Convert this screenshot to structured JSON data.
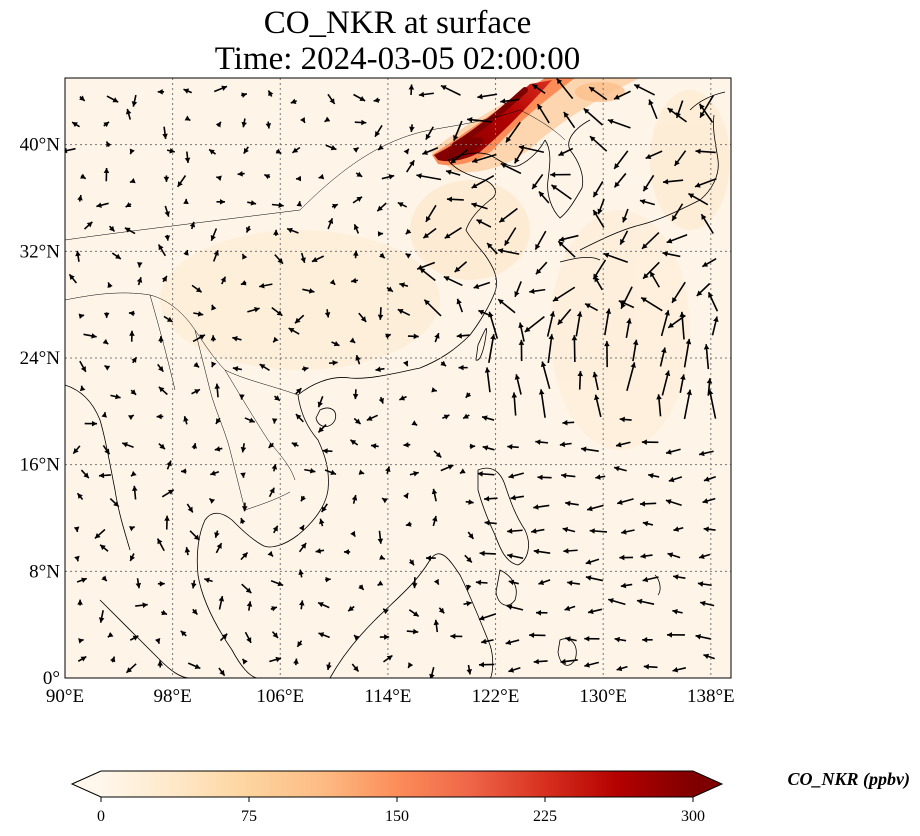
{
  "title": {
    "line1": "CO_NKR at surface",
    "line2": "Time: 2024-03-05 02:00:00"
  },
  "map": {
    "lon_range": [
      90,
      139.5
    ],
    "lat_range": [
      0,
      45
    ],
    "gridlines": "dotted",
    "coastlines": true,
    "borders": true,
    "lon_ticks": [
      {
        "value": 90,
        "label": "90°E"
      },
      {
        "value": 98,
        "label": "98°E"
      },
      {
        "value": 106,
        "label": "106°E"
      },
      {
        "value": 114,
        "label": "114°E"
      },
      {
        "value": 122,
        "label": "122°E"
      },
      {
        "value": 130,
        "label": "130°E"
      },
      {
        "value": 138,
        "label": "138°E"
      }
    ],
    "lat_ticks": [
      {
        "value": 0,
        "label": "0°"
      },
      {
        "value": 8,
        "label": "8°N"
      },
      {
        "value": 16,
        "label": "16°N"
      },
      {
        "value": 24,
        "label": "24°N"
      },
      {
        "value": 32,
        "label": "32°N"
      },
      {
        "value": 40,
        "label": "40°N"
      }
    ],
    "high_concentration_band": "Northeast China / Bohai region, up to >300 ppbv",
    "wind_vectors": "black quiver arrows"
  },
  "colorbar": {
    "label": "CO_NKR (ppbv)",
    "min": 0,
    "max": 300,
    "ticks": [
      "0",
      "75",
      "150",
      "225",
      "300"
    ],
    "colormap": "OrRd",
    "colors": [
      "#fff7ec",
      "#fee8c8",
      "#fdd49e",
      "#fdbb84",
      "#fc8d59",
      "#ef6548",
      "#d7301f",
      "#b30000",
      "#7f0000"
    ],
    "extend": "both"
  }
}
